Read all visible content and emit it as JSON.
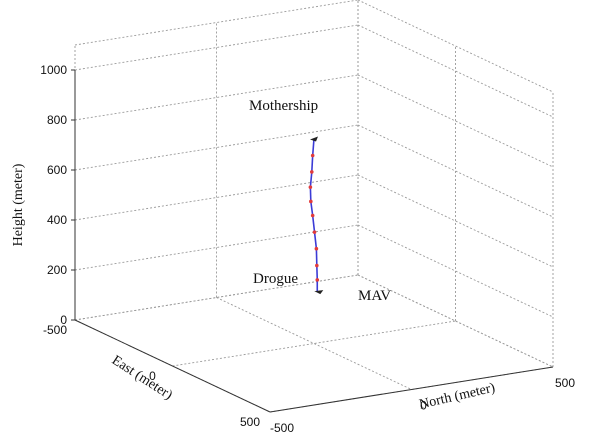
{
  "chart_data": {
    "type": "line3d",
    "title": "",
    "xlabel": "North (meter)",
    "ylabel": "East (meter)",
    "zlabel": "Height (meter)",
    "x_ticks": [
      "-500",
      "0",
      "500"
    ],
    "y_ticks": [
      "-500",
      "0",
      "500"
    ],
    "z_ticks": [
      "0",
      "200",
      "400",
      "600",
      "800",
      "1000"
    ],
    "xlim": [
      -500,
      500
    ],
    "ylim": [
      -500,
      500
    ],
    "zlim": [
      0,
      1100
    ],
    "grid": true,
    "annotations": [
      "Mothership",
      "Drogue",
      "MAV"
    ],
    "series": [
      {
        "color": "#3b3bd6",
        "marker_color": "#e23b3b",
        "points": [
          {
            "north": 0,
            "east": 0,
            "height": 820
          },
          {
            "north": -15,
            "east": 15,
            "height": 760
          },
          {
            "north": -25,
            "east": 25,
            "height": 700
          },
          {
            "north": -30,
            "east": 25,
            "height": 640
          },
          {
            "north": -25,
            "east": 20,
            "height": 580
          },
          {
            "north": -15,
            "east": 15,
            "height": 520
          },
          {
            "north": -5,
            "east": 10,
            "height": 450
          },
          {
            "north": 5,
            "east": 5,
            "height": 380
          },
          {
            "north": 10,
            "east": 0,
            "height": 310
          },
          {
            "north": 15,
            "east": -5,
            "height": 250
          },
          {
            "north": 15,
            "east": -5,
            "height": 205
          }
        ]
      }
    ]
  }
}
